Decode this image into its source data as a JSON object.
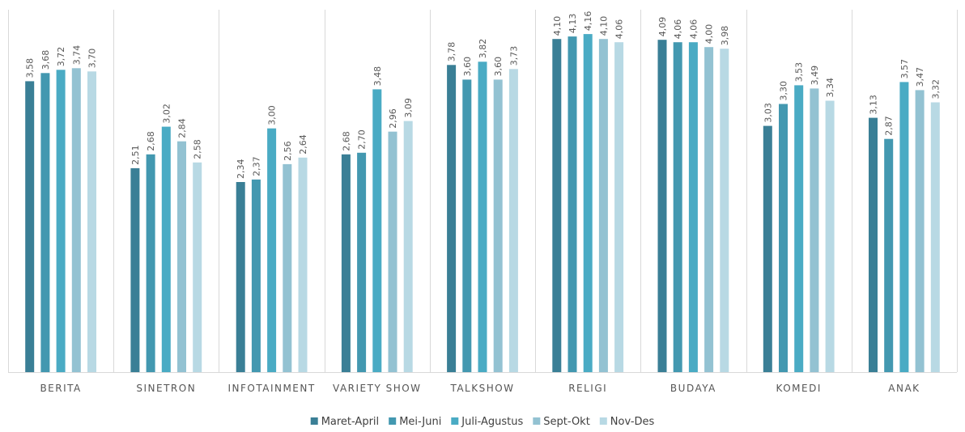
{
  "chart_data": {
    "type": "bar",
    "categories": [
      "BERITA",
      "SINETRON",
      "INFOTAINMENT",
      "VARIETY SHOW",
      "TALKSHOW",
      "RELIGI",
      "BUDAYA",
      "KOMEDI",
      "ANAK"
    ],
    "series": [
      {
        "name": "Maret-April",
        "color": "#3a7f96",
        "values": [
          3.58,
          2.51,
          2.34,
          2.68,
          3.78,
          4.1,
          4.09,
          3.03,
          3.13
        ],
        "labels": [
          "3,58",
          "2,51",
          "2,34",
          "2,68",
          "3,78",
          "4,10",
          "4,09",
          "3,03",
          "3,13"
        ]
      },
      {
        "name": "Mei-Juni",
        "color": "#4398b0",
        "values": [
          3.68,
          2.68,
          2.37,
          2.7,
          3.6,
          4.13,
          4.06,
          3.3,
          2.87
        ],
        "labels": [
          "3,68",
          "2,68",
          "2,37",
          "2,70",
          "3,60",
          "4,13",
          "4,06",
          "3,30",
          "2,87"
        ]
      },
      {
        "name": "Juli-Agustus",
        "color": "#4aabc4",
        "values": [
          3.72,
          3.02,
          3.0,
          3.48,
          3.82,
          4.16,
          4.06,
          3.53,
          3.57
        ],
        "labels": [
          "3,72",
          "3,02",
          "3,00",
          "3,48",
          "3,82",
          "4,16",
          "4,06",
          "3,53",
          "3,57"
        ]
      },
      {
        "name": "Sept-Okt",
        "color": "#93c2d2",
        "values": [
          3.74,
          2.84,
          2.56,
          2.96,
          3.6,
          4.1,
          4.0,
          3.49,
          3.47
        ],
        "labels": [
          "3,74",
          "2,84",
          "2,56",
          "2,96",
          "3,60",
          "4,10",
          "4,00",
          "3,49",
          "3,47"
        ]
      },
      {
        "name": "Nov-Des",
        "color": "#b8d9e4",
        "values": [
          3.7,
          2.58,
          2.64,
          3.09,
          3.73,
          4.06,
          3.98,
          3.34,
          3.32
        ],
        "labels": [
          "3,70",
          "2,58",
          "2,64",
          "3,09",
          "3,73",
          "4,06",
          "3,98",
          "3,34",
          "3,32"
        ]
      }
    ],
    "ylim": [
      0,
      4.46
    ],
    "grid": "vertical category separators",
    "legend": "bottom-center",
    "title": "",
    "xlabel": "",
    "ylabel": ""
  }
}
